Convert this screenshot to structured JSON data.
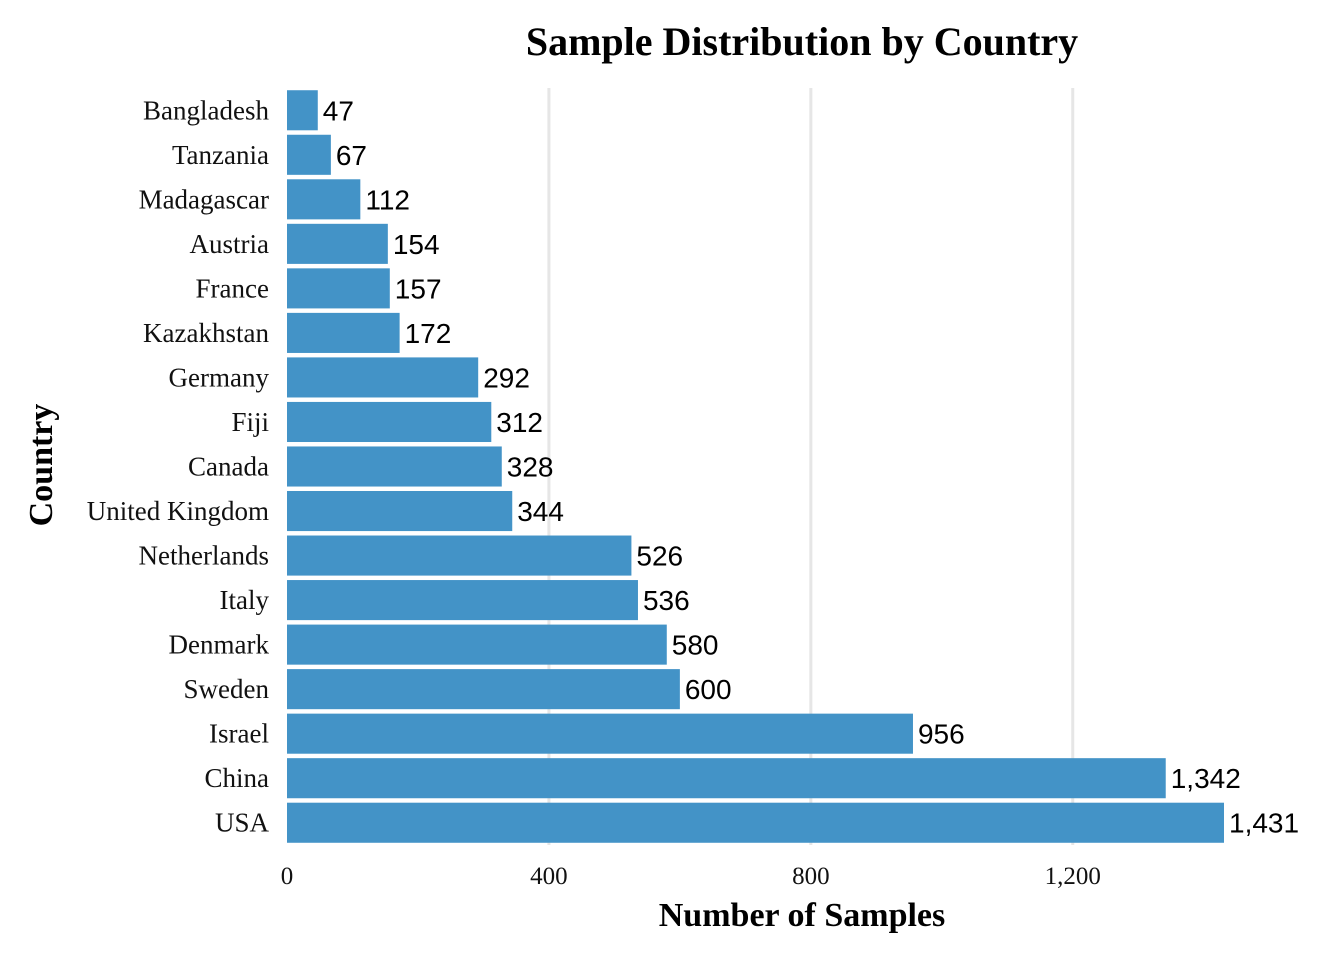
{
  "chart_data": {
    "type": "bar",
    "orientation": "horizontal",
    "title": "Sample Distribution by Country",
    "xlabel": "Number of Samples",
    "ylabel": "Country",
    "categories": [
      "Bangladesh",
      "Tanzania",
      "Madagascar",
      "Austria",
      "France",
      "Kazakhstan",
      "Germany",
      "Fiji",
      "Canada",
      "United Kingdom",
      "Netherlands",
      "Italy",
      "Denmark",
      "Sweden",
      "Israel",
      "China",
      "USA"
    ],
    "values": [
      47,
      67,
      112,
      154,
      157,
      172,
      292,
      312,
      328,
      344,
      526,
      536,
      580,
      600,
      956,
      1342,
      1431
    ],
    "value_labels": [
      "47",
      "67",
      "112",
      "154",
      "157",
      "172",
      "292",
      "312",
      "328",
      "344",
      "526",
      "536",
      "580",
      "600",
      "956",
      "1,342",
      "1,431"
    ],
    "xticks": [
      0,
      400,
      800,
      1200
    ],
    "xtick_labels": [
      "0",
      "400",
      "800",
      "1,200"
    ],
    "xlim": [
      0,
      1431
    ],
    "grid": "vertical major gridlines",
    "legend": "none",
    "bar_color": "#4393c7",
    "grid_color": "#e6e6e6"
  }
}
